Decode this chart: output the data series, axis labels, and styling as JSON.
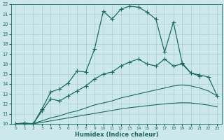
{
  "xlabel": "Humidex (Indice chaleur)",
  "bg_color": "#cde8ea",
  "grid_color": "#a8cfd1",
  "line_color": "#1a6b62",
  "xlim": [
    -0.5,
    23.5
  ],
  "ylim": [
    10,
    22
  ],
  "yticks": [
    10,
    11,
    12,
    13,
    14,
    15,
    16,
    17,
    18,
    19,
    20,
    21,
    22
  ],
  "xticks": [
    0,
    1,
    2,
    3,
    4,
    5,
    6,
    7,
    8,
    9,
    10,
    11,
    12,
    13,
    14,
    15,
    16,
    17,
    18,
    19,
    20,
    21,
    22,
    23
  ],
  "series": [
    {
      "x": [
        0,
        1,
        2,
        3,
        4,
        5,
        6,
        7,
        8,
        9,
        10,
        11,
        12,
        13,
        14,
        15,
        16,
        17,
        18,
        19,
        20,
        21
      ],
      "y": [
        10.0,
        10.1,
        10.0,
        11.5,
        13.2,
        13.5,
        14.1,
        15.3,
        15.2,
        17.5,
        21.3,
        20.5,
        21.5,
        21.8,
        21.7,
        21.2,
        20.5,
        17.2,
        20.2,
        16.1,
        15.1,
        14.8
      ],
      "marker": "+",
      "markersize": 4.0,
      "linewidth": 0.9
    },
    {
      "x": [
        0,
        1,
        2,
        3,
        4,
        5,
        6,
        7,
        8,
        9,
        10,
        11,
        12,
        13,
        14,
        15,
        16,
        17,
        18,
        19,
        20,
        21,
        22,
        23
      ],
      "y": [
        10.0,
        10.0,
        10.0,
        11.3,
        12.5,
        12.3,
        12.8,
        13.3,
        13.8,
        14.5,
        15.0,
        15.2,
        15.8,
        16.2,
        16.5,
        16.0,
        15.8,
        16.5,
        15.8,
        16.0,
        15.1,
        14.9,
        14.7,
        12.8
      ],
      "marker": "+",
      "markersize": 4.0,
      "linewidth": 0.9
    },
    {
      "x": [
        0,
        1,
        2,
        3,
        4,
        5,
        6,
        7,
        8,
        9,
        10,
        11,
        12,
        13,
        14,
        15,
        16,
        17,
        18,
        19,
        20,
        21,
        22,
        23
      ],
      "y": [
        10.0,
        10.0,
        10.05,
        10.3,
        10.6,
        10.8,
        11.1,
        11.3,
        11.6,
        11.9,
        12.1,
        12.3,
        12.6,
        12.8,
        13.0,
        13.2,
        13.4,
        13.6,
        13.8,
        13.9,
        13.8,
        13.6,
        13.3,
        12.8
      ],
      "marker": null,
      "linewidth": 0.8
    },
    {
      "x": [
        0,
        1,
        2,
        3,
        4,
        5,
        6,
        7,
        8,
        9,
        10,
        11,
        12,
        13,
        14,
        15,
        16,
        17,
        18,
        19,
        20,
        21,
        22,
        23
      ],
      "y": [
        10.0,
        10.0,
        10.0,
        10.15,
        10.3,
        10.45,
        10.6,
        10.75,
        10.9,
        11.05,
        11.2,
        11.35,
        11.5,
        11.62,
        11.72,
        11.82,
        11.92,
        12.0,
        12.08,
        12.12,
        12.1,
        12.0,
        11.88,
        11.7
      ],
      "marker": null,
      "linewidth": 0.8
    }
  ]
}
